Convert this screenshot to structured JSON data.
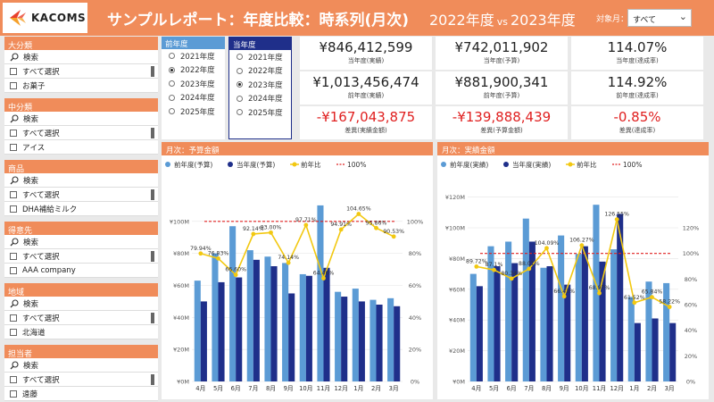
{
  "header": {
    "logo_text": "KACOMS",
    "title": "サンプルレポート：年度比較：時系列(月次)",
    "fy_from": "2022年度",
    "vs": "vs",
    "fy_to": "2023年度",
    "month_label": "対象月：",
    "month_value": "すべて"
  },
  "slicers": [
    {
      "title": "大分類",
      "search": "検索",
      "select_all": "すべて選択",
      "item": "お菓子"
    },
    {
      "title": "中分類",
      "search": "検索",
      "select_all": "すべて選択",
      "item": "アイス"
    },
    {
      "title": "商品",
      "search": "検索",
      "select_all": "すべて選択",
      "item": "DHA補給ミルク"
    },
    {
      "title": "得意先",
      "search": "検索",
      "select_all": "すべて選択",
      "item": "AAA company"
    },
    {
      "title": "地域",
      "search": "検索",
      "select_all": "すべて選択",
      "item": "北海道"
    },
    {
      "title": "担当者",
      "search": "検索",
      "select_all": "すべて選択",
      "item": "遠藤"
    }
  ],
  "fy_prev": {
    "title": "前年度",
    "color": "#5b9bd5",
    "options": [
      "2021年度",
      "2022年度",
      "2023年度",
      "2024年度",
      "2025年度"
    ],
    "selected": "2022年度"
  },
  "fy_curr": {
    "title": "当年度",
    "color": "#1f2f8a",
    "options": [
      "2021年度",
      "2022年度",
      "2023年度",
      "2024年度",
      "2025年度"
    ],
    "selected": "2023年度"
  },
  "kpis": [
    {
      "value": "¥846,412,599",
      "label": "当年度(実績)",
      "negative": false
    },
    {
      "value": "¥742,011,902",
      "label": "当年度(予算)",
      "negative": false
    },
    {
      "value": "114.07%",
      "label": "当年度(達成率)",
      "negative": false
    },
    {
      "value": "¥1,013,456,474",
      "label": "前年度(実績)",
      "negative": false
    },
    {
      "value": "¥881,900,341",
      "label": "前年度(予算)",
      "negative": false
    },
    {
      "value": "114.92%",
      "label": "前年度(達成率)",
      "negative": false
    },
    {
      "value": "-¥167,043,875",
      "label": "差異(実績金額)",
      "negative": true
    },
    {
      "value": "-¥139,888,439",
      "label": "差異(予算金額)",
      "negative": true
    },
    {
      "value": "-0.85%",
      "label": "差異(達成率)",
      "negative": true
    }
  ],
  "colors": {
    "accent": "#f08c5a",
    "prev_bar": "#5b9bd5",
    "curr_bar": "#1f2f8a",
    "ratio_line": "#f2c811",
    "ref_line": "#e02020"
  },
  "chart_data": [
    {
      "type": "bar",
      "title": "月次：予算金額",
      "legend": [
        "前年度(予算)",
        "当年度(予算)",
        "前年比",
        "100%"
      ],
      "categories": [
        "4月",
        "5月",
        "6月",
        "7月",
        "8月",
        "9月",
        "10月",
        "11月",
        "12月",
        "1月",
        "2月",
        "3月"
      ],
      "series": [
        {
          "name": "前年度(予算)",
          "values": [
            63,
            80,
            97,
            82,
            78,
            74,
            67,
            110,
            56,
            58,
            51,
            52
          ]
        },
        {
          "name": "当年度(予算)",
          "values": [
            50,
            62,
            65,
            76,
            72,
            55,
            66,
            71,
            53,
            50,
            48,
            47
          ]
        }
      ],
      "ratio": {
        "name": "前年比",
        "values": [
          79.94,
          76.83,
          66.6,
          92.14,
          93.0,
          74.14,
          97.71,
          64.46,
          94.91,
          104.65,
          95.86,
          90.53
        ],
        "labels": [
          "79.94%",
          "76.83%",
          "66.60%",
          "92.14%",
          "93.00%",
          "74.14%",
          "97.71%",
          "64.46%",
          "94.91%",
          "104.65%",
          "95.86%",
          "90.53%"
        ]
      },
      "ylim": [
        0,
        120
      ],
      "yticks": [
        "¥0M",
        "¥20M",
        "¥40M",
        "¥60M",
        "¥80M",
        "¥100M"
      ],
      "y2lim": [
        0,
        120
      ],
      "y2ticks": [
        "0%",
        "20%",
        "40%",
        "60%",
        "80%",
        "100%"
      ],
      "reference": 100
    },
    {
      "type": "bar",
      "title": "月次：実績金額",
      "legend": [
        "前年度(実績)",
        "当年度(実績)",
        "前年比",
        "100%"
      ],
      "categories": [
        "4月",
        "5月",
        "6月",
        "7月",
        "8月",
        "9月",
        "10月",
        "11月",
        "12月",
        "1月",
        "2月",
        "3月"
      ],
      "series": [
        {
          "name": "前年度(実績)",
          "values": [
            70,
            88,
            91,
            106,
            74,
            95,
            83,
            115,
            86,
            55,
            65,
            64
          ]
        },
        {
          "name": "当年度(実績)",
          "values": [
            62,
            75,
            77,
            91,
            75,
            63,
            88,
            78,
            109,
            38,
            41,
            38
          ]
        }
      ],
      "ratio": {
        "name": "前年比",
        "values": [
          89.72,
          87.1,
          80.34,
          88.01,
          104.09,
          66.43,
          106.27,
          68.97,
          126.55,
          61.52,
          65.84,
          58.22
        ],
        "labels": [
          "89.72%",
          "87.1%",
          "80.34%",
          "88.01%",
          "104.09%",
          "66.43%",
          "106.27%",
          "68.97%",
          "126.55%",
          "61.52%",
          "65.84%",
          "58.22%"
        ]
      },
      "ylim": [
        0,
        125
      ],
      "yticks": [
        "¥0M",
        "¥20M",
        "¥40M",
        "¥60M",
        "¥80M",
        "¥100M",
        "¥120M"
      ],
      "y2lim": [
        0,
        150
      ],
      "y2ticks": [
        "0%",
        "20%",
        "40%",
        "60%",
        "80%",
        "100%",
        "120%"
      ],
      "reference": 100
    }
  ]
}
